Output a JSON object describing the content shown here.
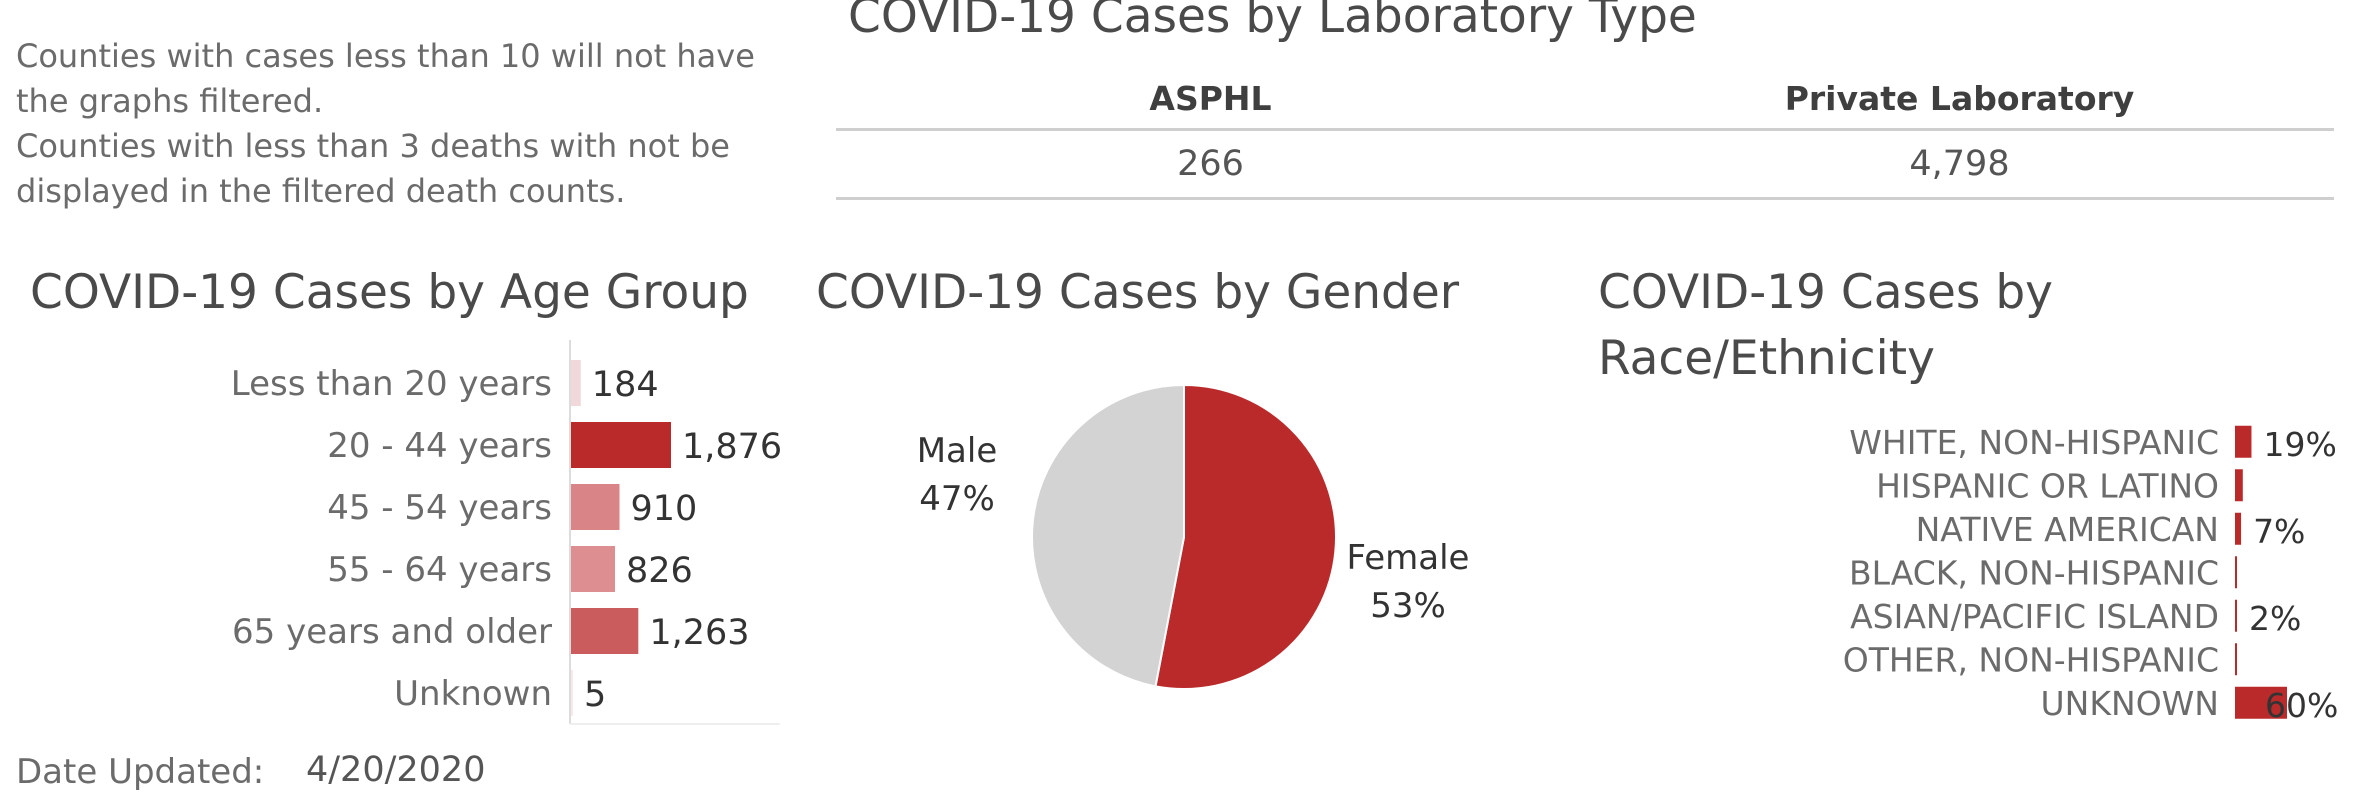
{
  "notes": [
    "Counties with cases less than 10 will not have the graphs filtered.",
    "Counties with less than 3 deaths with not be displayed in the filtered death counts."
  ],
  "lab": {
    "title": "COVID-19 Cases by Laboratory Type",
    "headers": [
      "ASPHL",
      "Private Laboratory"
    ],
    "values": [
      "266",
      "4,798"
    ]
  },
  "colors": {
    "accent": "#bb2a2b",
    "age_bar_colors": [
      "#f1d9db",
      "#bb2a2b",
      "#d98587",
      "#dc8e90",
      "#cb5c5d",
      "#f7eaeb"
    ],
    "male": "#d3d3d3",
    "female": "#bb2a2b"
  },
  "chart_data": [
    {
      "type": "bar",
      "orientation": "horizontal",
      "title": "COVID-19 Cases by Age Group",
      "categories": [
        "Less than 20 years",
        "20 - 44 years",
        "45 - 54 years",
        "55 - 64 years",
        "65 years and older",
        "Unknown"
      ],
      "values": [
        184,
        1876,
        910,
        826,
        1263,
        5
      ],
      "labels": [
        "184",
        "1,876",
        "910",
        "826",
        "1,263",
        "5"
      ],
      "xlim": [
        0,
        1876
      ]
    },
    {
      "type": "pie",
      "title": "COVID-19 Cases by Gender",
      "slices": [
        {
          "name": "Female",
          "value": 53,
          "label": "53%"
        },
        {
          "name": "Male",
          "value": 47,
          "label": "47%"
        }
      ]
    },
    {
      "type": "bar",
      "orientation": "horizontal",
      "title": "COVID-19 Cases by Race/Ethnicity",
      "categories": [
        "WHITE, NON-HISPANIC",
        "HISPANIC OR LATINO",
        "NATIVE AMERICAN",
        "BLACK, NON-HISPANIC",
        "ASIAN/PACIFIC ISLAND",
        "OTHER, NON-HISPANIC",
        "UNKNOWN"
      ],
      "values": [
        19,
        9,
        7,
        2,
        2,
        1,
        60
      ],
      "labels": [
        "19%",
        "",
        "7%",
        "",
        "2%",
        "",
        "60%"
      ],
      "xlim": [
        0,
        60
      ]
    }
  ],
  "footer": {
    "date_label": "Date Updated:",
    "date_value": "4/20/2020"
  }
}
